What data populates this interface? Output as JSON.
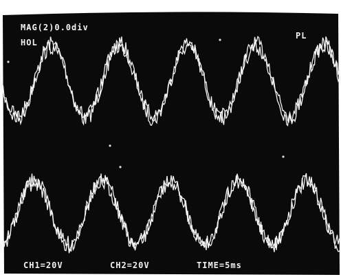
{
  "status": {
    "magnification": "MAG(2)0.0div",
    "mode": "HOL",
    "indicator": "PL"
  },
  "settings": {
    "ch1": "CH1=20V",
    "ch2": "CH2=20V",
    "time": "TIME=5ms"
  }
}
